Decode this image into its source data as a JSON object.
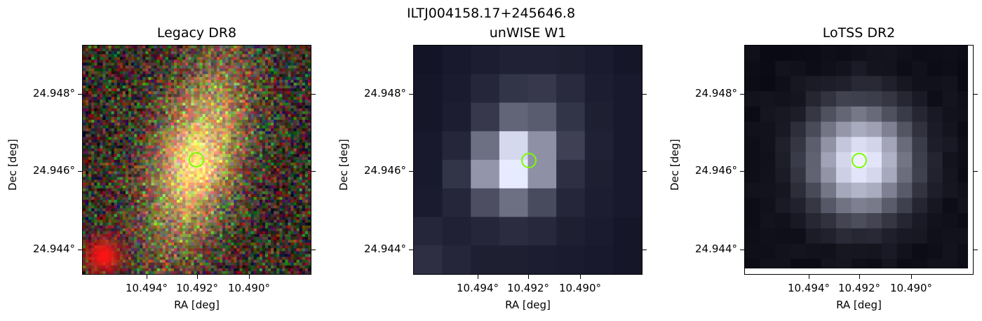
{
  "figure": {
    "title": "ILTJ004158.17+245646.8",
    "marker_color": "#7CFC00"
  },
  "panels": [
    {
      "title": "Legacy DR8",
      "image": "optical-rgb-cutout",
      "xlabel": "RA [deg]",
      "ylabel": "Dec [deg]",
      "xticks": [
        "10.494°",
        "10.492°",
        "10.490°"
      ],
      "yticks": [
        "24.948°",
        "24.946°",
        "24.944°"
      ]
    },
    {
      "title": "unWISE W1",
      "image": "infrared-grayscale-cutout",
      "xlabel": "RA [deg]",
      "ylabel": "Dec [deg]",
      "xticks": [
        "10.494°",
        "10.492°",
        "10.490°"
      ],
      "yticks": [
        "24.948°",
        "24.946°",
        "24.944°"
      ]
    },
    {
      "title": "LoTSS DR2",
      "image": "radio-grayscale-cutout",
      "xlabel": "RA [deg]",
      "ylabel": "Dec [deg]",
      "xticks": [
        "10.494°",
        "10.492°",
        "10.490°"
      ],
      "yticks": [
        "24.948°",
        "24.946°",
        "24.944°"
      ]
    }
  ]
}
